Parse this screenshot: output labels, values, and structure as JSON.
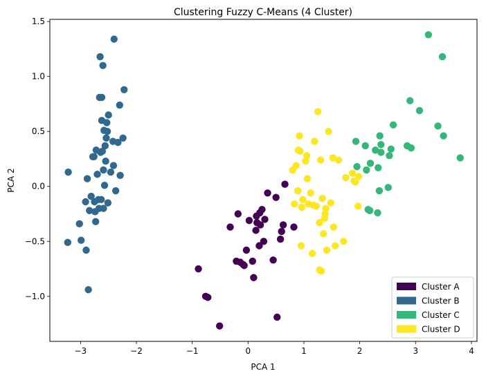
{
  "chart_data": {
    "type": "scatter",
    "title": "Clustering Fuzzy C-Means (4 Cluster)",
    "xlabel": "PCA 1",
    "ylabel": "PCA 2",
    "xlim": [
      -3.55,
      4.1
    ],
    "ylim": [
      -1.41,
      1.52
    ],
    "xticks": [
      -3,
      -2,
      -1,
      0,
      1,
      2,
      3,
      4
    ],
    "xtick_labels": [
      "−3",
      "−2",
      "−1",
      "0",
      "1",
      "2",
      "3",
      "4"
    ],
    "yticks": [
      -1.0,
      -0.5,
      0.0,
      0.5,
      1.0,
      1.5
    ],
    "ytick_labels": [
      "−1.0",
      "−0.5",
      "0.0",
      "0.5",
      "1.0",
      "1.5"
    ],
    "grid": false,
    "legend_position": "bottom-right",
    "series": [
      {
        "name": "Cluster A",
        "color": "#440154",
        "points": [
          [
            -0.89,
            -0.75
          ],
          [
            -0.76,
            -1.0
          ],
          [
            -0.72,
            -1.01
          ],
          [
            -0.51,
            -1.27
          ],
          [
            -0.32,
            -0.37
          ],
          [
            -0.21,
            -0.68
          ],
          [
            -0.14,
            -0.69
          ],
          [
            -0.09,
            -0.71
          ],
          [
            -0.07,
            -0.72
          ],
          [
            -0.03,
            -0.58
          ],
          [
            0.02,
            -0.31
          ],
          [
            0.08,
            -0.68
          ],
          [
            0.1,
            -0.83
          ],
          [
            0.14,
            -0.4
          ],
          [
            0.15,
            -0.27
          ],
          [
            0.16,
            -0.33
          ],
          [
            0.2,
            -0.54
          ],
          [
            0.21,
            -0.24
          ],
          [
            0.22,
            -0.35
          ],
          [
            0.25,
            -0.21
          ],
          [
            0.28,
            -0.5
          ],
          [
            0.3,
            -0.3
          ],
          [
            0.45,
            -0.67
          ],
          [
            0.5,
            -0.1
          ],
          [
            0.52,
            -1.19
          ],
          [
            0.58,
            -0.48
          ],
          [
            0.6,
            -0.41
          ],
          [
            0.63,
            -0.35
          ],
          [
            0.66,
            0.02
          ],
          [
            0.82,
            -0.37
          ],
          [
            -0.18,
            -0.25
          ],
          [
            0.35,
            -0.06
          ]
        ]
      },
      {
        "name": "Cluster B",
        "color": "#31688e",
        "points": [
          [
            -3.22,
            0.13
          ],
          [
            -3.23,
            -0.51
          ],
          [
            -3.02,
            -0.34
          ],
          [
            -2.99,
            -0.49
          ],
          [
            -2.91,
            -0.14
          ],
          [
            -2.9,
            -0.58
          ],
          [
            -2.88,
            0.07
          ],
          [
            -2.86,
            -0.94
          ],
          [
            -2.84,
            -0.22
          ],
          [
            -2.81,
            -0.09
          ],
          [
            -2.78,
            0.27
          ],
          [
            -2.76,
            0.27
          ],
          [
            -2.75,
            -0.14
          ],
          [
            -2.74,
            -0.23
          ],
          [
            -2.73,
            -0.32
          ],
          [
            -2.72,
            0.33
          ],
          [
            -2.7,
            0.11
          ],
          [
            -2.68,
            -0.12
          ],
          [
            -2.67,
            -0.2
          ],
          [
            -2.66,
            0.81
          ],
          [
            -2.65,
            1.18
          ],
          [
            -2.64,
            0.31
          ],
          [
            -2.63,
            -0.12
          ],
          [
            -2.62,
            0.81
          ],
          [
            -2.62,
            0.6
          ],
          [
            -2.61,
            0.32
          ],
          [
            -2.6,
            1.1
          ],
          [
            -2.59,
            0.15
          ],
          [
            -2.59,
            -0.2
          ],
          [
            -2.58,
            0.51
          ],
          [
            -2.57,
            0.01
          ],
          [
            -2.56,
            0.37
          ],
          [
            -2.55,
            0.23
          ],
          [
            -2.54,
            0.44
          ],
          [
            -2.53,
            0.58
          ],
          [
            -2.52,
            0.5
          ],
          [
            -2.51,
            -0.15
          ],
          [
            -2.5,
            0.65
          ],
          [
            -2.46,
            0.13
          ],
          [
            -2.42,
            0.41
          ],
          [
            -2.41,
            0.19
          ],
          [
            -2.4,
            1.34
          ],
          [
            -2.37,
            -0.04
          ],
          [
            -2.33,
            0.4
          ],
          [
            -2.3,
            0.74
          ],
          [
            -2.29,
            0.1
          ],
          [
            -2.24,
            0.44
          ],
          [
            -2.22,
            0.88
          ]
        ]
      },
      {
        "name": "Cluster C",
        "color": "#35b779",
        "points": [
          [
            1.93,
            0.41
          ],
          [
            1.95,
            0.18
          ],
          [
            2.1,
            0.37
          ],
          [
            2.12,
            0.15
          ],
          [
            2.15,
            -0.21
          ],
          [
            2.18,
            -0.22
          ],
          [
            2.19,
            0.21
          ],
          [
            2.28,
            0.33
          ],
          [
            2.32,
            -0.24
          ],
          [
            2.33,
            0.17
          ],
          [
            2.35,
            -0.04
          ],
          [
            2.36,
            0.46
          ],
          [
            2.38,
            0.38
          ],
          [
            2.38,
            0.31
          ],
          [
            2.51,
            -0.01
          ],
          [
            2.53,
            0.28
          ],
          [
            2.56,
            0.34
          ],
          [
            2.6,
            0.56
          ],
          [
            2.85,
            0.37
          ],
          [
            2.9,
            0.78
          ],
          [
            2.92,
            0.35
          ],
          [
            3.07,
            0.69
          ],
          [
            3.23,
            1.38
          ],
          [
            3.4,
            0.55
          ],
          [
            3.48,
            1.18
          ],
          [
            3.5,
            0.46
          ],
          [
            3.8,
            0.26
          ]
        ]
      },
      {
        "name": "Cluster D",
        "color": "#fde725",
        "points": [
          [
            0.8,
            0.15
          ],
          [
            0.83,
            -0.16
          ],
          [
            0.86,
            0.19
          ],
          [
            0.89,
            -0.04
          ],
          [
            0.9,
            0.33
          ],
          [
            0.92,
            0.46
          ],
          [
            0.93,
            0.32
          ],
          [
            0.95,
            -0.54
          ],
          [
            0.96,
            -0.19
          ],
          [
            0.98,
            -0.12
          ],
          [
            1.03,
            0.23
          ],
          [
            1.05,
            0.28
          ],
          [
            1.06,
            0.07
          ],
          [
            1.08,
            -0.16
          ],
          [
            1.12,
            -0.06
          ],
          [
            1.15,
            -0.61
          ],
          [
            1.17,
            -0.17
          ],
          [
            1.19,
            0.41
          ],
          [
            1.22,
            -0.18
          ],
          [
            1.25,
            0.68
          ],
          [
            1.28,
            -0.33
          ],
          [
            1.28,
            -0.76
          ],
          [
            1.3,
            0.24
          ],
          [
            1.31,
            -0.77
          ],
          [
            1.33,
            -0.11
          ],
          [
            1.35,
            -0.43
          ],
          [
            1.37,
            -0.29
          ],
          [
            1.38,
            -0.25
          ],
          [
            1.39,
            -0.2
          ],
          [
            1.41,
            -0.58
          ],
          [
            1.44,
            0.5
          ],
          [
            1.48,
            -0.15
          ],
          [
            1.52,
            0.26
          ],
          [
            1.53,
            -0.37
          ],
          [
            1.56,
            -0.54
          ],
          [
            1.62,
            0.24
          ],
          [
            1.71,
            -0.5
          ],
          [
            1.75,
            0.08
          ],
          [
            1.87,
            0.12
          ],
          [
            1.9,
            0.05
          ],
          [
            1.92,
            0.04
          ],
          [
            1.97,
            -0.18
          ],
          [
            1.98,
            0.09
          ]
        ]
      }
    ]
  }
}
